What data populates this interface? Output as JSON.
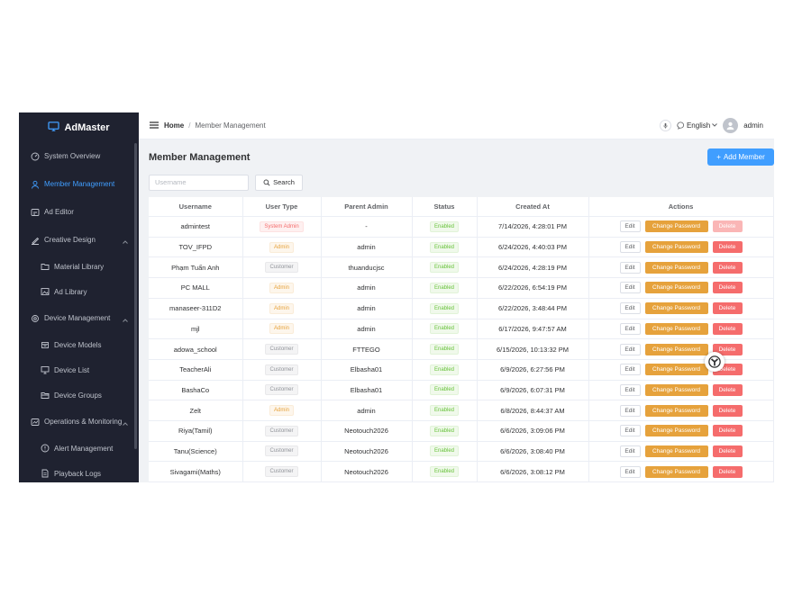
{
  "app": {
    "name": "AdMaster",
    "icon": "monitor-icon"
  },
  "sidebar": {
    "items": [
      {
        "label": "System Overview",
        "icon": "dashboard-icon",
        "active": false,
        "sub": false,
        "expandable": false
      },
      {
        "label": "Member Management",
        "icon": "user-icon",
        "active": true,
        "sub": false,
        "expandable": false
      },
      {
        "label": "Ad Editor",
        "icon": "edit-icon",
        "active": false,
        "sub": false,
        "expandable": false
      },
      {
        "label": "Creative Design",
        "icon": "brush-icon",
        "active": false,
        "sub": false,
        "expandable": true
      },
      {
        "label": "Material Library",
        "icon": "folder-icon",
        "active": false,
        "sub": true,
        "expandable": false
      },
      {
        "label": "Ad Library",
        "icon": "image-icon",
        "active": false,
        "sub": true,
        "expandable": false
      },
      {
        "label": "Device Management",
        "icon": "gear-icon",
        "active": false,
        "sub": false,
        "expandable": true
      },
      {
        "label": "Device Models",
        "icon": "box-icon",
        "active": false,
        "sub": true,
        "expandable": false
      },
      {
        "label": "Device List",
        "icon": "monitor-icon",
        "active": false,
        "sub": true,
        "expandable": false
      },
      {
        "label": "Device Groups",
        "icon": "folder-open-icon",
        "active": false,
        "sub": true,
        "expandable": false
      },
      {
        "label": "Operations & Monitoring",
        "icon": "chart-icon",
        "active": false,
        "sub": false,
        "expandable": true
      },
      {
        "label": "Alert Management",
        "icon": "alert-icon",
        "active": false,
        "sub": true,
        "expandable": false
      },
      {
        "label": "Playback Logs",
        "icon": "document-icon",
        "active": false,
        "sub": true,
        "expandable": false
      }
    ]
  },
  "header": {
    "breadcrumb": {
      "home": "Home",
      "separator": "/",
      "current": "Member Management"
    },
    "language": "English",
    "user": "admin"
  },
  "page": {
    "title": "Member Management",
    "add_button": "Add Member",
    "search_placeholder": "Username",
    "search_button": "Search"
  },
  "table": {
    "columns": [
      "Username",
      "User Type",
      "Parent Admin",
      "Status",
      "Created At",
      "Actions"
    ],
    "action_labels": {
      "edit": "Edit",
      "change_password": "Change Password",
      "delete": "Delete"
    },
    "rows": [
      {
        "username": "admintest",
        "user_type": "System Admin",
        "type_kind": "sys",
        "parent": "-",
        "status": "Enabled",
        "created": "7/14/2026, 4:28:01 PM",
        "delete_disabled": true
      },
      {
        "username": "TOV_IFPD",
        "user_type": "Admin",
        "type_kind": "admin",
        "parent": "admin",
        "status": "Enabled",
        "created": "6/24/2026, 4:40:03 PM",
        "delete_disabled": false
      },
      {
        "username": "Phạm Tuấn Anh",
        "user_type": "Customer",
        "type_kind": "cust",
        "parent": "thuanducjsc",
        "status": "Enabled",
        "created": "6/24/2026, 4:28:19 PM",
        "delete_disabled": false
      },
      {
        "username": "PC MALL",
        "user_type": "Admin",
        "type_kind": "admin",
        "parent": "admin",
        "status": "Enabled",
        "created": "6/22/2026, 6:54:19 PM",
        "delete_disabled": false
      },
      {
        "username": "manaseer-311D2",
        "user_type": "Admin",
        "type_kind": "admin",
        "parent": "admin",
        "status": "Enabled",
        "created": "6/22/2026, 3:48:44 PM",
        "delete_disabled": false
      },
      {
        "username": "mjl",
        "user_type": "Admin",
        "type_kind": "admin",
        "parent": "admin",
        "status": "Enabled",
        "created": "6/17/2026, 9:47:57 AM",
        "delete_disabled": false
      },
      {
        "username": "adowa_school",
        "user_type": "Customer",
        "type_kind": "cust",
        "parent": "FTTEGO",
        "status": "Enabled",
        "created": "6/15/2026, 10:13:32 PM",
        "delete_disabled": false
      },
      {
        "username": "TeacherAli",
        "user_type": "Customer",
        "type_kind": "cust",
        "parent": "Elbasha01",
        "status": "Enabled",
        "created": "6/9/2026, 6:27:56 PM",
        "delete_disabled": false
      },
      {
        "username": "BashaCo",
        "user_type": "Customer",
        "type_kind": "cust",
        "parent": "Elbasha01",
        "status": "Enabled",
        "created": "6/9/2026, 6:07:31 PM",
        "delete_disabled": false
      },
      {
        "username": "Zelt",
        "user_type": "Admin",
        "type_kind": "admin",
        "parent": "admin",
        "status": "Enabled",
        "created": "6/8/2026, 8:44:37 AM",
        "delete_disabled": false
      },
      {
        "username": "Riya(Tamil)",
        "user_type": "Customer",
        "type_kind": "cust",
        "parent": "Neotouch2026",
        "status": "Enabled",
        "created": "6/6/2026, 3:09:06 PM",
        "delete_disabled": false
      },
      {
        "username": "Tanu(Science)",
        "user_type": "Customer",
        "type_kind": "cust",
        "parent": "Neotouch2026",
        "status": "Enabled",
        "created": "6/6/2026, 3:08:40 PM",
        "delete_disabled": false
      },
      {
        "username": "Sivagami(Maths)",
        "user_type": "Customer",
        "type_kind": "cust",
        "parent": "Neotouch2026",
        "status": "Enabled",
        "created": "6/6/2026, 3:08:12 PM",
        "delete_disabled": false
      }
    ]
  },
  "colors": {
    "sidebar_bg": "#1f2230",
    "accent": "#409eff",
    "warning": "#e6a23c",
    "danger": "#f56c6c",
    "success": "#67c23a"
  }
}
